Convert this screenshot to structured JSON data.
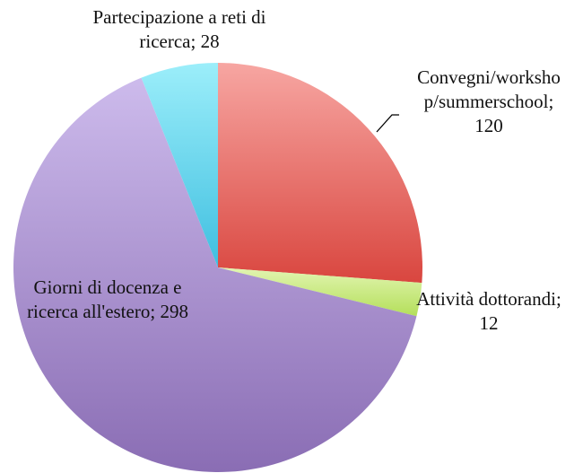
{
  "chart_data": {
    "type": "pie",
    "categories": [
      "Convegni/workshop/summerschool",
      "Attività dottorandi",
      "Giorni di docenza e ricerca all'estero",
      "Partecipazione a reti di ricerca"
    ],
    "values": [
      120,
      12,
      298,
      28
    ],
    "colors": [
      [
        "#f7a6a2",
        "#d9463f"
      ],
      [
        "#e2f5b2",
        "#b4df5a"
      ],
      [
        "#cdbbec",
        "#8a6db4"
      ],
      [
        "#9ceefa",
        "#3fbfe0"
      ]
    ],
    "label_separator": "; "
  }
}
